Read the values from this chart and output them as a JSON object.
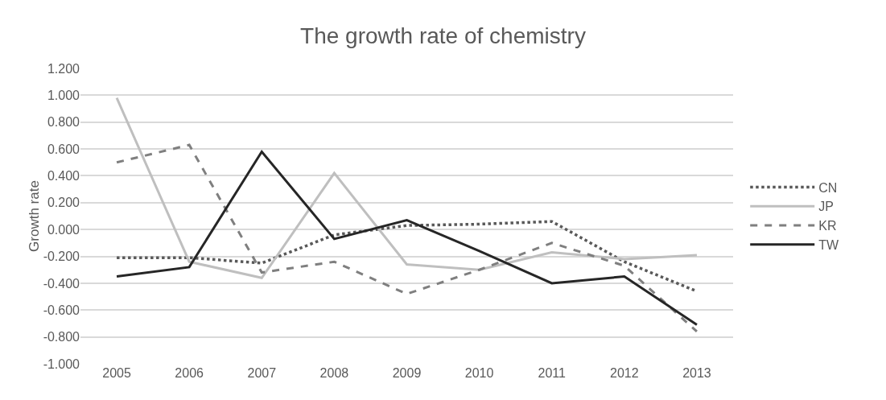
{
  "chart_data": {
    "type": "line",
    "title": "The growth rate of chemistry",
    "ylabel": "Growth rate",
    "categories": [
      "2005",
      "2006",
      "2007",
      "2008",
      "2009",
      "2010",
      "2011",
      "2012",
      "2013"
    ],
    "series": [
      {
        "name": "CN",
        "color": "#595959",
        "line_style": "dotted",
        "values": [
          -0.21,
          -0.21,
          -0.25,
          -0.04,
          0.03,
          0.04,
          0.06,
          -0.24,
          -0.46
        ]
      },
      {
        "name": "JP",
        "color": "#bfbfbf",
        "line_style": "solid",
        "values": [
          0.98,
          -0.24,
          -0.36,
          0.42,
          -0.26,
          -0.3,
          -0.17,
          -0.22,
          -0.19
        ]
      },
      {
        "name": "KR",
        "color": "#7f7f7f",
        "line_style": "dashed",
        "values": [
          0.5,
          0.63,
          -0.32,
          -0.24,
          -0.48,
          -0.3,
          -0.1,
          -0.27,
          -0.76
        ]
      },
      {
        "name": "TW",
        "color": "#262626",
        "line_style": "solid",
        "values": [
          -0.35,
          -0.28,
          0.58,
          -0.07,
          0.07,
          -0.16,
          -0.4,
          -0.35,
          -0.71
        ]
      }
    ],
    "ylim": [
      -1.0,
      1.2
    ],
    "yticks": [
      {
        "value": -1.0,
        "label": "-1.000"
      },
      {
        "value": -0.8,
        "label": "-0.800"
      },
      {
        "value": -0.6,
        "label": "-0.600"
      },
      {
        "value": -0.4,
        "label": "-0.400"
      },
      {
        "value": -0.2,
        "label": "-0.200"
      },
      {
        "value": 0,
        "label": "0.000"
      },
      {
        "value": 0.2,
        "label": "0.200"
      },
      {
        "value": 0.4,
        "label": "0.400"
      },
      {
        "value": 0.6,
        "label": "0.600"
      },
      {
        "value": 0.8,
        "label": "0.800"
      },
      {
        "value": 1.0,
        "label": "1.000"
      },
      {
        "value": 1.2,
        "label": "1.200"
      }
    ],
    "grid": "y",
    "legend": "right",
    "marker": "none"
  }
}
